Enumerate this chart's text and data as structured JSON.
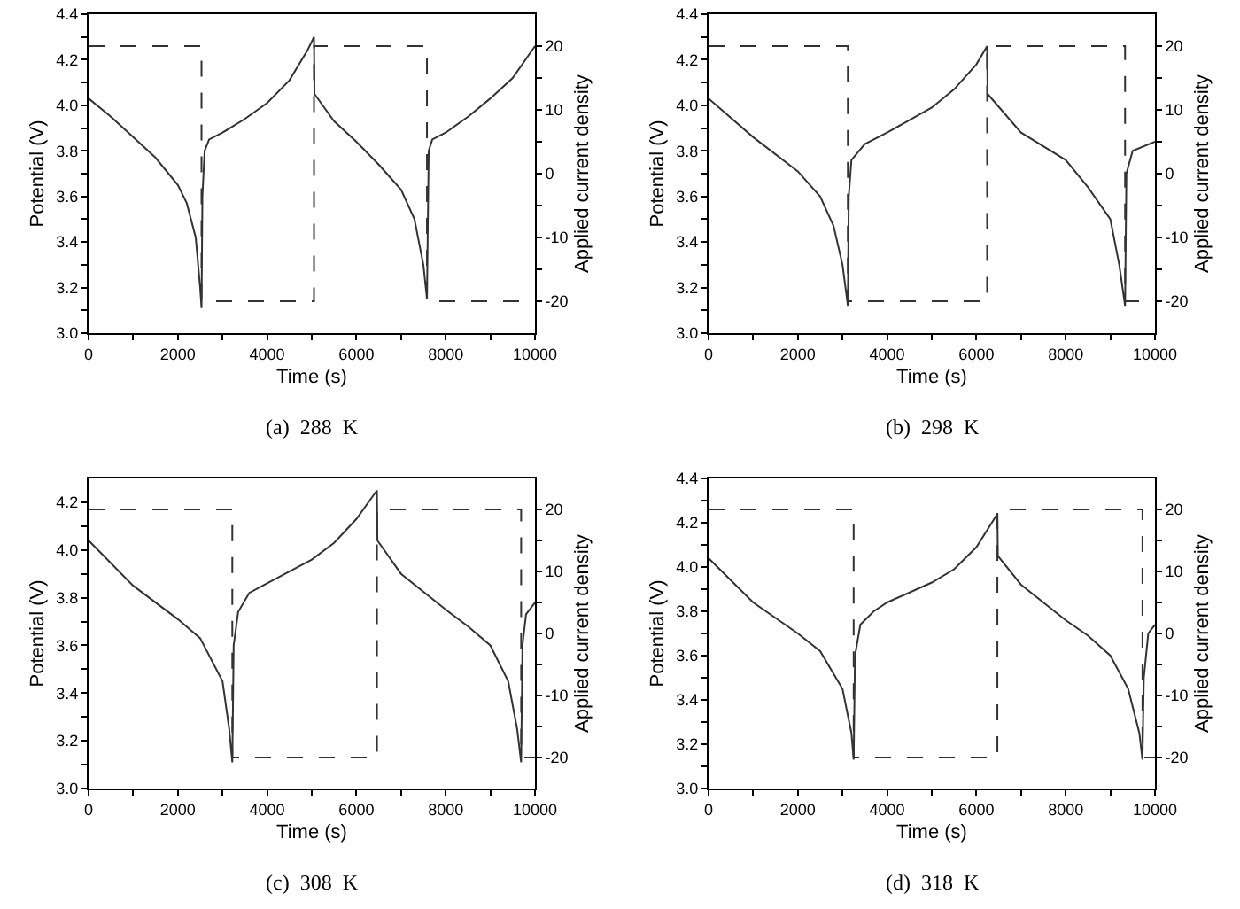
{
  "chart_data": [
    {
      "type": "line",
      "xlabel": "Time (s)",
      "ylabel": "Potential (V)",
      "y2label": "Applied current density",
      "annotations": [
        "(a)  288  K"
      ],
      "xlim": [
        0,
        10000
      ],
      "xticks": [
        0,
        {
          "value": 1000,
          "label": null
        },
        2000,
        {
          "value": 3000,
          "label": null
        },
        4000,
        {
          "value": 5000,
          "label": null
        },
        6000,
        {
          "value": 7000,
          "label": null
        },
        8000,
        {
          "value": 9000,
          "label": null
        },
        10000
      ],
      "ylim": [
        3.0,
        4.4
      ],
      "yticks": [
        {
          "value": 3,
          "label": "3.0"
        },
        {
          "value": 3.1,
          "label": null
        },
        3.2,
        {
          "value": 3.3,
          "label": null
        },
        3.4,
        {
          "value": 3.5,
          "label": null
        },
        3.6,
        {
          "value": 3.7,
          "label": null
        },
        3.8,
        {
          "value": 3.9,
          "label": null
        },
        {
          "value": 4,
          "label": "4.0"
        },
        {
          "value": 4.1,
          "label": null
        },
        4.2,
        {
          "value": 4.3,
          "label": null
        },
        4.4
      ],
      "y2lim": [
        -25,
        25
      ],
      "y2ticks": [
        -20,
        {
          "value": -15,
          "label": null
        },
        -10,
        {
          "value": -5,
          "label": null
        },
        0,
        {
          "value": 5,
          "label": null
        },
        10,
        {
          "value": 15,
          "label": null
        },
        20
      ],
      "series": [
        {
          "color": "#333333",
          "line_style": "solid",
          "x": [
            0,
            500,
            1000,
            1500,
            2000,
            2200,
            2400,
            2500,
            2530,
            2550,
            2600,
            2700,
            3000,
            3500,
            4000,
            4500,
            4900,
            5050,
            5060,
            5500,
            6000,
            6500,
            7000,
            7300,
            7500,
            7580,
            7620,
            7700,
            8000,
            8500,
            9000,
            9500,
            10000
          ],
          "values": [
            4.03,
            3.95,
            3.86,
            3.77,
            3.65,
            3.57,
            3.42,
            3.2,
            3.11,
            3.6,
            3.8,
            3.85,
            3.88,
            3.94,
            4.01,
            4.11,
            4.24,
            4.3,
            4.05,
            3.93,
            3.84,
            3.74,
            3.63,
            3.5,
            3.3,
            3.15,
            3.8,
            3.85,
            3.88,
            3.95,
            4.03,
            4.12,
            4.26
          ]
        },
        {
          "color": "#333333",
          "line_style": "dashed",
          "axis": "y2",
          "x": [
            0,
            2530,
            2530,
            5050,
            5050,
            7580,
            7580,
            10000
          ],
          "values": [
            20,
            20,
            -20,
            -20,
            20,
            20,
            -20,
            -20
          ]
        }
      ]
    },
    {
      "type": "line",
      "xlabel": "Time (s)",
      "ylabel": "Potential (V)",
      "y2label": "Applied current density",
      "annotations": [
        "(b)  298  K"
      ],
      "xlim": [
        0,
        10000
      ],
      "xticks": [
        0,
        {
          "value": 1000,
          "label": null
        },
        2000,
        {
          "value": 3000,
          "label": null
        },
        4000,
        {
          "value": 5000,
          "label": null
        },
        6000,
        {
          "value": 7000,
          "label": null
        },
        8000,
        {
          "value": 9000,
          "label": null
        },
        10000
      ],
      "ylim": [
        3.0,
        4.4
      ],
      "yticks": [
        {
          "value": 3,
          "label": "3.0"
        },
        {
          "value": 3.1,
          "label": null
        },
        3.2,
        {
          "value": 3.3,
          "label": null
        },
        3.4,
        {
          "value": 3.5,
          "label": null
        },
        3.6,
        {
          "value": 3.7,
          "label": null
        },
        3.8,
        {
          "value": 3.9,
          "label": null
        },
        {
          "value": 4,
          "label": "4.0"
        },
        {
          "value": 4.1,
          "label": null
        },
        4.2,
        {
          "value": 4.3,
          "label": null
        },
        4.4
      ],
      "y2lim": [
        -25,
        25
      ],
      "y2ticks": [
        -20,
        {
          "value": -15,
          "label": null
        },
        -10,
        {
          "value": -5,
          "label": null
        },
        0,
        {
          "value": 5,
          "label": null
        },
        10,
        {
          "value": 15,
          "label": null
        },
        20
      ],
      "series": [
        {
          "color": "#333333",
          "line_style": "solid",
          "x": [
            0,
            1000,
            2000,
            2500,
            2800,
            3000,
            3120,
            3140,
            3200,
            3500,
            4000,
            5000,
            5500,
            6000,
            6240,
            6250,
            7000,
            8000,
            8500,
            9000,
            9200,
            9330,
            9360,
            9500,
            10000
          ],
          "values": [
            4.03,
            3.86,
            3.71,
            3.6,
            3.47,
            3.3,
            3.12,
            3.6,
            3.76,
            3.83,
            3.88,
            3.99,
            4.07,
            4.18,
            4.26,
            4.05,
            3.88,
            3.76,
            3.64,
            3.5,
            3.3,
            3.12,
            3.7,
            3.8,
            3.84
          ]
        },
        {
          "color": "#333333",
          "line_style": "dashed",
          "axis": "y2",
          "x": [
            0,
            3120,
            3120,
            6240,
            6240,
            9330,
            9330,
            10000
          ],
          "values": [
            20,
            20,
            -20,
            -20,
            20,
            20,
            -20,
            -20
          ]
        }
      ]
    },
    {
      "type": "line",
      "xlabel": "Time (s)",
      "ylabel": "Potential (V)",
      "y2label": "Applied current density",
      "annotations": [
        "(c)  308  K"
      ],
      "xlim": [
        0,
        10000
      ],
      "xticks": [
        0,
        {
          "value": 1000,
          "label": null
        },
        2000,
        {
          "value": 3000,
          "label": null
        },
        4000,
        {
          "value": 5000,
          "label": null
        },
        6000,
        {
          "value": 7000,
          "label": null
        },
        8000,
        {
          "value": 9000,
          "label": null
        },
        10000
      ],
      "ylim": [
        3.0,
        4.3
      ],
      "yticks": [
        {
          "value": 3,
          "label": "3.0"
        },
        {
          "value": 3.1,
          "label": null
        },
        3.2,
        {
          "value": 3.3,
          "label": null
        },
        3.4,
        {
          "value": 3.5,
          "label": null
        },
        3.6,
        {
          "value": 3.7,
          "label": null
        },
        3.8,
        {
          "value": 3.9,
          "label": null
        },
        {
          "value": 4,
          "label": "4.0"
        },
        {
          "value": 4.1,
          "label": null
        },
        4.2
      ],
      "y2lim": [
        -25,
        25
      ],
      "y2ticks": [
        -20,
        {
          "value": -15,
          "label": null
        },
        -10,
        {
          "value": -5,
          "label": null
        },
        0,
        {
          "value": 5,
          "label": null
        },
        10,
        {
          "value": 15,
          "label": null
        },
        20
      ],
      "series": [
        {
          "color": "#333333",
          "line_style": "solid",
          "x": [
            0,
            1000,
            2000,
            2500,
            3000,
            3150,
            3220,
            3250,
            3350,
            3600,
            4000,
            5000,
            5500,
            6000,
            6460,
            6470,
            7000,
            8000,
            8500,
            9000,
            9400,
            9600,
            9690,
            9720,
            9800,
            10000
          ],
          "values": [
            4.04,
            3.85,
            3.71,
            3.63,
            3.45,
            3.25,
            3.11,
            3.6,
            3.74,
            3.82,
            3.86,
            3.96,
            4.03,
            4.13,
            4.25,
            4.04,
            3.9,
            3.75,
            3.68,
            3.6,
            3.45,
            3.25,
            3.11,
            3.6,
            3.73,
            3.78
          ]
        },
        {
          "color": "#333333",
          "line_style": "dashed",
          "axis": "y2",
          "x": [
            0,
            3220,
            3220,
            6460,
            6460,
            9690,
            9690,
            10000
          ],
          "values": [
            20,
            20,
            -20,
            -20,
            20,
            20,
            -20,
            -20
          ]
        }
      ]
    },
    {
      "type": "line",
      "xlabel": "Time (s)",
      "ylabel": "Potential (V)",
      "y2label": "Applied current density",
      "annotations": [
        "(d)  318  K"
      ],
      "xlim": [
        0,
        10000
      ],
      "xticks": [
        0,
        {
          "value": 1000,
          "label": null
        },
        2000,
        {
          "value": 3000,
          "label": null
        },
        4000,
        {
          "value": 5000,
          "label": null
        },
        6000,
        {
          "value": 7000,
          "label": null
        },
        8000,
        {
          "value": 9000,
          "label": null
        },
        10000
      ],
      "ylim": [
        3.0,
        4.4
      ],
      "yticks": [
        {
          "value": 3,
          "label": "3.0"
        },
        {
          "value": 3.1,
          "label": null
        },
        3.2,
        {
          "value": 3.3,
          "label": null
        },
        3.4,
        {
          "value": 3.5,
          "label": null
        },
        3.6,
        {
          "value": 3.7,
          "label": null
        },
        3.8,
        {
          "value": 3.9,
          "label": null
        },
        {
          "value": 4,
          "label": "4.0"
        },
        {
          "value": 4.1,
          "label": null
        },
        4.2,
        {
          "value": 4.3,
          "label": null
        },
        4.4
      ],
      "y2lim": [
        -25,
        25
      ],
      "y2ticks": [
        -20,
        {
          "value": -15,
          "label": null
        },
        -10,
        {
          "value": -5,
          "label": null
        },
        0,
        {
          "value": 5,
          "label": null
        },
        10,
        {
          "value": 15,
          "label": null
        },
        20
      ],
      "series": [
        {
          "color": "#333333",
          "line_style": "solid",
          "x": [
            0,
            1000,
            2000,
            2500,
            3000,
            3200,
            3250,
            3280,
            3400,
            3700,
            4000,
            5000,
            5500,
            6000,
            6470,
            6480,
            7000,
            8000,
            8500,
            9000,
            9400,
            9650,
            9720,
            9750,
            9850,
            10000
          ],
          "values": [
            4.04,
            3.84,
            3.7,
            3.62,
            3.45,
            3.25,
            3.13,
            3.6,
            3.74,
            3.8,
            3.84,
            3.93,
            3.99,
            4.09,
            4.24,
            4.05,
            3.92,
            3.76,
            3.69,
            3.6,
            3.45,
            3.25,
            3.13,
            3.5,
            3.7,
            3.74
          ]
        },
        {
          "color": "#333333",
          "line_style": "dashed",
          "axis": "y2",
          "x": [
            0,
            3250,
            3250,
            6470,
            6470,
            9720,
            9720,
            10000
          ],
          "values": [
            20,
            20,
            -20,
            -20,
            20,
            20,
            -20,
            -20
          ]
        }
      ]
    }
  ]
}
